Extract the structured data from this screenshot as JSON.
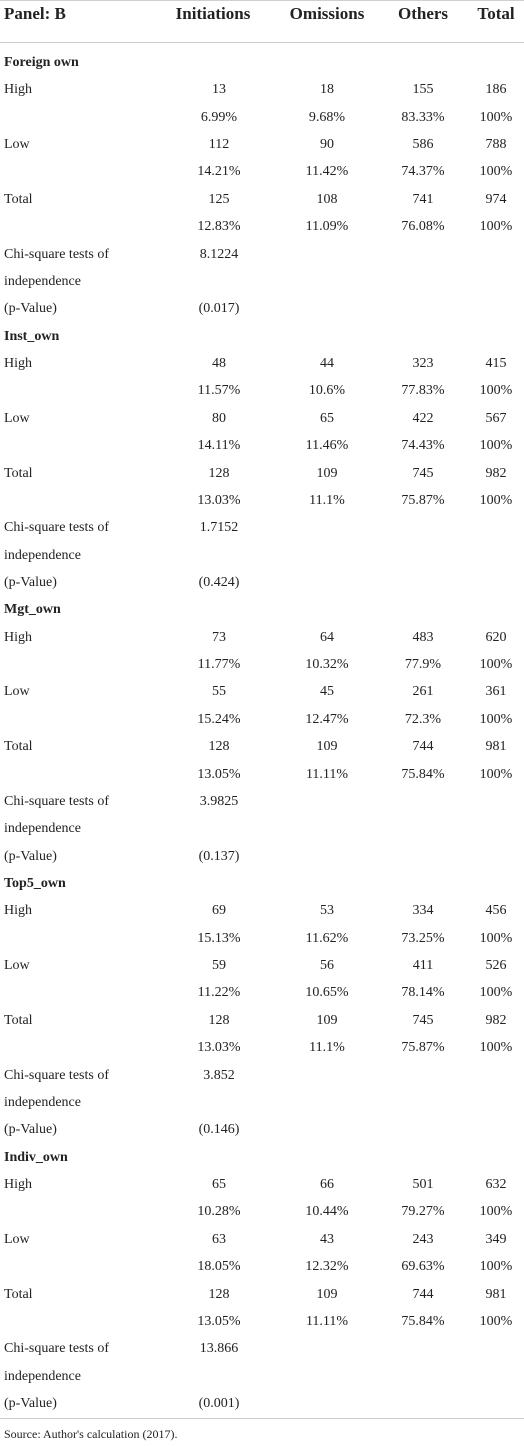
{
  "table": {
    "header": [
      "Panel: B",
      "Initiations",
      "Omissions",
      "Others",
      "Total"
    ],
    "groups": [
      {
        "name": "Foreign own",
        "rows": [
          {
            "label": "High",
            "cells": [
              "13",
              "18",
              "155",
              "186"
            ]
          },
          {
            "cells": [
              "6.99%",
              "9.68%",
              "83.33%",
              "100%"
            ]
          },
          {
            "label": "Low",
            "cells": [
              "112",
              "90",
              "586",
              "788"
            ]
          },
          {
            "cells": [
              "14.21%",
              "11.42%",
              "74.37%",
              "100%"
            ]
          },
          {
            "label": "Total",
            "cells": [
              "125",
              "108",
              "741",
              "974"
            ]
          },
          {
            "cells": [
              "12.83%",
              "11.09%",
              "76.08%",
              "100%"
            ]
          },
          {
            "label": "Chi-square tests of",
            "cells": [
              "8.1224"
            ]
          },
          {
            "label": "independence"
          },
          {
            "label": "(p-Value)",
            "cells": [
              "(0.017)"
            ]
          }
        ]
      },
      {
        "name": "Inst_own",
        "rows": [
          {
            "label": "High",
            "cells": [
              "48",
              "44",
              "323",
              "415"
            ]
          },
          {
            "cells": [
              "11.57%",
              "10.6%",
              "77.83%",
              "100%"
            ]
          },
          {
            "label": "Low",
            "cells": [
              "80",
              "65",
              "422",
              "567"
            ]
          },
          {
            "cells": [
              "14.11%",
              "11.46%",
              "74.43%",
              "100%"
            ]
          },
          {
            "label": "Total",
            "cells": [
              "128",
              "109",
              "745",
              "982"
            ]
          },
          {
            "cells": [
              "13.03%",
              "11.1%",
              "75.87%",
              "100%"
            ]
          },
          {
            "label": "Chi-square tests of",
            "cells": [
              "1.7152"
            ]
          },
          {
            "label": "independence"
          },
          {
            "label": "(p-Value)",
            "cells": [
              "(0.424)"
            ]
          }
        ]
      },
      {
        "name": "Mgt_own",
        "rows": [
          {
            "label": "High",
            "cells": [
              "73",
              "64",
              "483",
              "620"
            ]
          },
          {
            "cells": [
              "11.77%",
              "10.32%",
              "77.9%",
              "100%"
            ]
          },
          {
            "label": "Low",
            "cells": [
              "55",
              "45",
              "261",
              "361"
            ]
          },
          {
            "cells": [
              "15.24%",
              "12.47%",
              "72.3%",
              "100%"
            ]
          },
          {
            "label": "Total",
            "cells": [
              "128",
              "109",
              "744",
              "981"
            ]
          },
          {
            "cells": [
              "13.05%",
              "11.11%",
              "75.84%",
              "100%"
            ]
          },
          {
            "label": "Chi-square tests of",
            "cells": [
              "3.9825"
            ]
          },
          {
            "label": "independence"
          },
          {
            "label": "(p-Value)",
            "cells": [
              "(0.137)"
            ]
          }
        ]
      },
      {
        "name": "Top5_own",
        "rows": [
          {
            "label": "High",
            "cells": [
              "69",
              "53",
              "334",
              "456"
            ]
          },
          {
            "cells": [
              "15.13%",
              "11.62%",
              "73.25%",
              "100%"
            ]
          },
          {
            "label": "Low",
            "cells": [
              "59",
              "56",
              "411",
              "526"
            ]
          },
          {
            "cells": [
              "11.22%",
              "10.65%",
              "78.14%",
              "100%"
            ]
          },
          {
            "label": "Total",
            "cells": [
              "128",
              "109",
              "745",
              "982"
            ]
          },
          {
            "cells": [
              "13.03%",
              "11.1%",
              "75.87%",
              "100%"
            ]
          },
          {
            "label": "Chi-square tests of",
            "cells": [
              "3.852"
            ]
          },
          {
            "label": "independence"
          },
          {
            "label": "(p-Value)",
            "cells": [
              "(0.146)"
            ]
          }
        ]
      },
      {
        "name": "Indiv_own",
        "rows": [
          {
            "label": "High",
            "cells": [
              "65",
              "66",
              "501",
              "632"
            ]
          },
          {
            "cells": [
              "10.28%",
              "10.44%",
              "79.27%",
              "100%"
            ]
          },
          {
            "label": "Low",
            "cells": [
              "63",
              "43",
              "243",
              "349"
            ]
          },
          {
            "cells": [
              "18.05%",
              "12.32%",
              "69.63%",
              "100%"
            ]
          },
          {
            "label": "Total",
            "cells": [
              "128",
              "109",
              "744",
              "981"
            ]
          },
          {
            "cells": [
              "13.05%",
              "11.11%",
              "75.84%",
              "100%"
            ]
          },
          {
            "label": "Chi-square tests of",
            "cells": [
              "13.866"
            ]
          },
          {
            "label": "independence"
          },
          {
            "label": "(p-Value)",
            "cells": [
              "(0.001)"
            ]
          }
        ]
      }
    ]
  },
  "footer": {
    "source": "Source: Author's calculation (2017)."
  }
}
